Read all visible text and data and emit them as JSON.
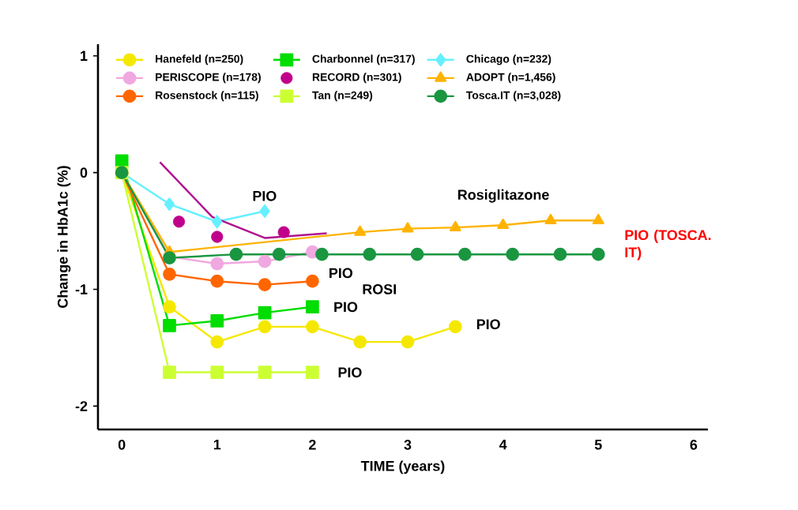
{
  "chart_data": {
    "type": "line",
    "xlabel": "TIME (years)",
    "ylabel": "Change in HbA1c (%)",
    "xlim": [
      -0.25,
      6.15
    ],
    "ylim": [
      -2.2,
      1.1
    ],
    "xticks": [
      0,
      1,
      2,
      3,
      4,
      5,
      6
    ],
    "yticks": [
      -2,
      -1,
      0,
      1
    ],
    "grid": false,
    "legend": "top",
    "series": [
      {
        "name": "Hanefeld (n=250)",
        "color": "#f5e800",
        "marker": "circle",
        "x": [
          0,
          0.5,
          1,
          1.5,
          2,
          2.5,
          3,
          3.5
        ],
        "values": [
          0,
          -1.15,
          -1.45,
          -1.32,
          -1.32,
          -1.45,
          -1.45,
          -1.32
        ]
      },
      {
        "name": "Charbonnel (n=317)",
        "color": "#00dd00",
        "marker": "square",
        "x": [
          0,
          0.5,
          1,
          1.5,
          2
        ],
        "values": [
          0.1,
          -1.31,
          -1.27,
          -1.2,
          -1.15
        ]
      },
      {
        "name": "Chicago (n=232)",
        "color": "#66f0ff",
        "marker": "diamond",
        "x": [
          0,
          0.5,
          1,
          1.5
        ],
        "values": [
          0,
          -0.27,
          -0.42,
          -0.33
        ]
      },
      {
        "name": "PERISCOPE (n=178)",
        "color": "#f0a8e0",
        "marker": "circle",
        "x": [
          0,
          0.5,
          1,
          1.5,
          2
        ],
        "values": [
          0,
          -0.72,
          -0.78,
          -0.76,
          -0.68
        ]
      },
      {
        "name": "RECORD (n=301)",
        "color": "#c0008a",
        "marker": "circle",
        "type": "scatter",
        "x": [
          0.6,
          1,
          1.7
        ],
        "values": [
          -0.42,
          -0.55,
          -0.51
        ]
      },
      {
        "name": "ADOPT (n=1,456)",
        "color": "#ffb300",
        "marker": "triangle",
        "x": [
          0,
          0.5,
          2.5,
          3,
          3.5,
          4,
          4.5,
          5
        ],
        "values": [
          0,
          -0.68,
          -0.51,
          -0.48,
          -0.47,
          -0.45,
          -0.41,
          -0.41
        ]
      },
      {
        "name": "Rosenstock (n=115)",
        "color": "#ff6600",
        "marker": "circle",
        "x": [
          0,
          0.5,
          1,
          1.5,
          2
        ],
        "values": [
          0,
          -0.87,
          -0.93,
          -0.96,
          -0.93
        ]
      },
      {
        "name": "Tan (n=249)",
        "color": "#ccff33",
        "marker": "square",
        "x": [
          0,
          0.5,
          1,
          1.5,
          2
        ],
        "values": [
          0,
          -1.71,
          -1.71,
          -1.71,
          -1.71
        ]
      },
      {
        "name": "Tosca.IT (n=3,028)",
        "color": "#1a9641",
        "marker": "circle",
        "x": [
          0,
          0.5,
          1.2,
          1.65,
          2.1,
          2.6,
          3.1,
          3.6,
          4.1,
          4.6,
          5
        ],
        "values": [
          0,
          -0.73,
          -0.7,
          -0.7,
          -0.7,
          -0.7,
          -0.7,
          -0.7,
          -0.7,
          -0.7,
          -0.7
        ]
      },
      {
        "color": "#b0108f",
        "marker": "none",
        "x": [
          0.4,
          0.95,
          1.5,
          2.15
        ],
        "values": [
          0.09,
          -0.38,
          -0.56,
          -0.52
        ]
      }
    ],
    "annotations": [
      "PIO",
      "PIO",
      "ROSI",
      "PIO",
      "PIO",
      "PIO",
      "Rosiglitazone",
      "PIO (TOSCA. IT)"
    ]
  }
}
